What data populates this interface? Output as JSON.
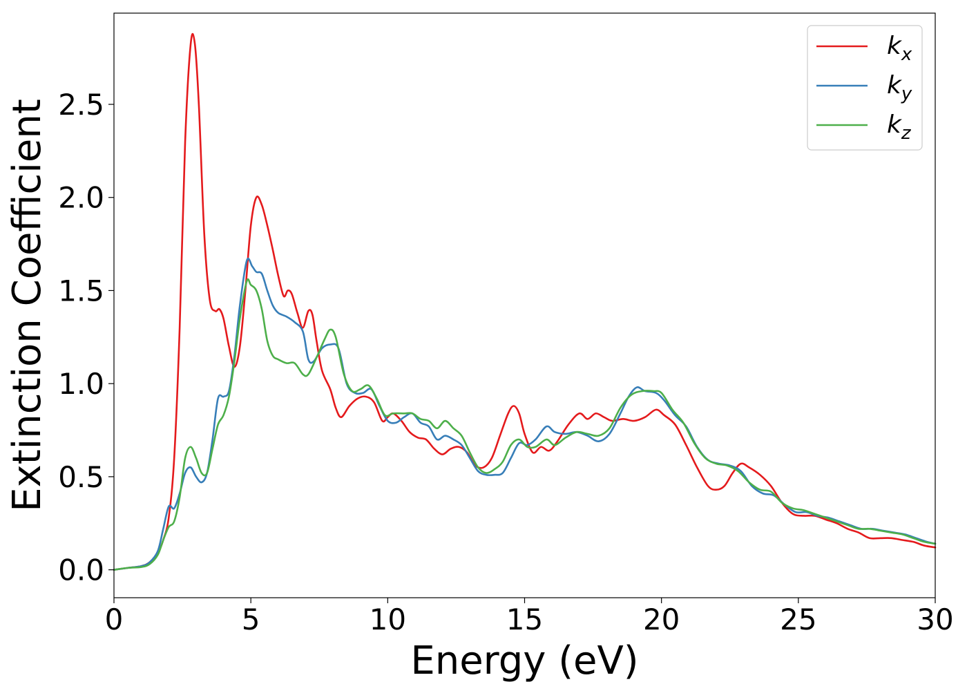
{
  "chart_data": {
    "type": "line",
    "xlabel": "Energy (eV)",
    "ylabel": "Extinction Coefficient",
    "xlim": [
      0,
      30
    ],
    "ylim": [
      -0.15,
      2.99
    ],
    "xticks": [
      0,
      5,
      10,
      15,
      20,
      25,
      30
    ],
    "xtick_labels": [
      "0",
      "5",
      "10",
      "15",
      "20",
      "25",
      "30"
    ],
    "yticks": [
      0.0,
      0.5,
      1.0,
      1.5,
      2.0,
      2.5
    ],
    "ytick_labels": [
      "0.0",
      "0.5",
      "1.0",
      "1.5",
      "2.0",
      "2.5"
    ],
    "grid": false,
    "legend_position": "top-right",
    "series": [
      {
        "name": "k",
        "subscript": "x",
        "color": "#e41a1c",
        "points": [
          [
            0,
            0
          ],
          [
            0.5,
            0.01
          ],
          [
            1,
            0.02
          ],
          [
            1.3,
            0.04
          ],
          [
            1.6,
            0.09
          ],
          [
            1.8,
            0.16
          ],
          [
            2,
            0.28
          ],
          [
            2.2,
            0.6
          ],
          [
            2.4,
            1.3
          ],
          [
            2.6,
            2.3
          ],
          [
            2.8,
            2.82
          ],
          [
            2.95,
            2.83
          ],
          [
            3.1,
            2.5
          ],
          [
            3.3,
            1.8
          ],
          [
            3.5,
            1.45
          ],
          [
            3.7,
            1.39
          ],
          [
            3.85,
            1.4
          ],
          [
            4,
            1.35
          ],
          [
            4.2,
            1.2
          ],
          [
            4.4,
            1.09
          ],
          [
            4.6,
            1.2
          ],
          [
            4.8,
            1.5
          ],
          [
            5,
            1.85
          ],
          [
            5.2,
            2.0
          ],
          [
            5.4,
            1.96
          ],
          [
            5.6,
            1.85
          ],
          [
            5.8,
            1.72
          ],
          [
            6,
            1.58
          ],
          [
            6.2,
            1.47
          ],
          [
            6.35,
            1.5
          ],
          [
            6.5,
            1.48
          ],
          [
            6.7,
            1.38
          ],
          [
            6.9,
            1.3
          ],
          [
            7.1,
            1.39
          ],
          [
            7.25,
            1.37
          ],
          [
            7.4,
            1.23
          ],
          [
            7.6,
            1.07
          ],
          [
            7.9,
            0.97
          ],
          [
            8.1,
            0.87
          ],
          [
            8.3,
            0.82
          ],
          [
            8.6,
            0.88
          ],
          [
            8.9,
            0.92
          ],
          [
            9.2,
            0.93
          ],
          [
            9.5,
            0.9
          ],
          [
            9.8,
            0.8
          ],
          [
            10,
            0.82
          ],
          [
            10.2,
            0.84
          ],
          [
            10.5,
            0.8
          ],
          [
            10.8,
            0.74
          ],
          [
            11.1,
            0.71
          ],
          [
            11.4,
            0.7
          ],
          [
            11.7,
            0.65
          ],
          [
            12,
            0.62
          ],
          [
            12.3,
            0.65
          ],
          [
            12.6,
            0.66
          ],
          [
            12.9,
            0.63
          ],
          [
            13.2,
            0.56
          ],
          [
            13.5,
            0.55
          ],
          [
            13.8,
            0.6
          ],
          [
            14.1,
            0.72
          ],
          [
            14.4,
            0.84
          ],
          [
            14.6,
            0.88
          ],
          [
            14.8,
            0.84
          ],
          [
            15,
            0.73
          ],
          [
            15.3,
            0.63
          ],
          [
            15.6,
            0.66
          ],
          [
            15.9,
            0.64
          ],
          [
            16.2,
            0.69
          ],
          [
            16.6,
            0.78
          ],
          [
            17,
            0.84
          ],
          [
            17.3,
            0.81
          ],
          [
            17.6,
            0.84
          ],
          [
            17.9,
            0.82
          ],
          [
            18.2,
            0.8
          ],
          [
            18.6,
            0.81
          ],
          [
            19,
            0.8
          ],
          [
            19.4,
            0.82
          ],
          [
            19.8,
            0.86
          ],
          [
            20.1,
            0.83
          ],
          [
            20.5,
            0.78
          ],
          [
            20.9,
            0.67
          ],
          [
            21.3,
            0.55
          ],
          [
            21.7,
            0.45
          ],
          [
            22,
            0.43
          ],
          [
            22.3,
            0.45
          ],
          [
            22.6,
            0.52
          ],
          [
            22.9,
            0.57
          ],
          [
            23.2,
            0.55
          ],
          [
            23.6,
            0.51
          ],
          [
            24,
            0.45
          ],
          [
            24.4,
            0.36
          ],
          [
            24.8,
            0.3
          ],
          [
            25.2,
            0.29
          ],
          [
            25.6,
            0.29
          ],
          [
            26,
            0.27
          ],
          [
            26.4,
            0.25
          ],
          [
            26.8,
            0.22
          ],
          [
            27.2,
            0.2
          ],
          [
            27.6,
            0.17
          ],
          [
            28,
            0.17
          ],
          [
            28.4,
            0.17
          ],
          [
            28.8,
            0.16
          ],
          [
            29.2,
            0.15
          ],
          [
            29.6,
            0.13
          ],
          [
            30,
            0.12
          ]
        ]
      },
      {
        "name": "k",
        "subscript": "y",
        "color": "#377eb8",
        "points": [
          [
            0,
            0
          ],
          [
            0.5,
            0.01
          ],
          [
            1,
            0.02
          ],
          [
            1.3,
            0.04
          ],
          [
            1.6,
            0.1
          ],
          [
            1.8,
            0.22
          ],
          [
            2,
            0.34
          ],
          [
            2.2,
            0.33
          ],
          [
            2.4,
            0.41
          ],
          [
            2.6,
            0.52
          ],
          [
            2.8,
            0.55
          ],
          [
            3,
            0.5
          ],
          [
            3.2,
            0.47
          ],
          [
            3.4,
            0.52
          ],
          [
            3.6,
            0.7
          ],
          [
            3.8,
            0.92
          ],
          [
            4,
            0.93
          ],
          [
            4.2,
            0.96
          ],
          [
            4.4,
            1.15
          ],
          [
            4.6,
            1.42
          ],
          [
            4.85,
            1.66
          ],
          [
            5.05,
            1.63
          ],
          [
            5.2,
            1.6
          ],
          [
            5.4,
            1.59
          ],
          [
            5.6,
            1.5
          ],
          [
            5.8,
            1.42
          ],
          [
            6,
            1.38
          ],
          [
            6.3,
            1.36
          ],
          [
            6.6,
            1.33
          ],
          [
            6.9,
            1.28
          ],
          [
            7.1,
            1.13
          ],
          [
            7.3,
            1.12
          ],
          [
            7.6,
            1.19
          ],
          [
            7.9,
            1.21
          ],
          [
            8.2,
            1.19
          ],
          [
            8.5,
            1.0
          ],
          [
            8.8,
            0.95
          ],
          [
            9.1,
            0.95
          ],
          [
            9.4,
            0.97
          ],
          [
            9.7,
            0.88
          ],
          [
            10,
            0.8
          ],
          [
            10.3,
            0.79
          ],
          [
            10.6,
            0.82
          ],
          [
            10.9,
            0.84
          ],
          [
            11.2,
            0.79
          ],
          [
            11.5,
            0.77
          ],
          [
            11.8,
            0.7
          ],
          [
            12.1,
            0.72
          ],
          [
            12.4,
            0.7
          ],
          [
            12.7,
            0.67
          ],
          [
            13,
            0.6
          ],
          [
            13.3,
            0.53
          ],
          [
            13.6,
            0.51
          ],
          [
            13.9,
            0.51
          ],
          [
            14.2,
            0.52
          ],
          [
            14.5,
            0.6
          ],
          [
            14.8,
            0.68
          ],
          [
            15.1,
            0.67
          ],
          [
            15.4,
            0.7
          ],
          [
            15.8,
            0.77
          ],
          [
            16.1,
            0.74
          ],
          [
            16.5,
            0.73
          ],
          [
            16.9,
            0.74
          ],
          [
            17.3,
            0.72
          ],
          [
            17.7,
            0.69
          ],
          [
            18.1,
            0.73
          ],
          [
            18.5,
            0.84
          ],
          [
            18.8,
            0.93
          ],
          [
            19.1,
            0.98
          ],
          [
            19.4,
            0.96
          ],
          [
            19.8,
            0.95
          ],
          [
            20.1,
            0.91
          ],
          [
            20.5,
            0.83
          ],
          [
            20.9,
            0.77
          ],
          [
            21.3,
            0.66
          ],
          [
            21.7,
            0.59
          ],
          [
            22.1,
            0.57
          ],
          [
            22.5,
            0.56
          ],
          [
            22.9,
            0.53
          ],
          [
            23.3,
            0.45
          ],
          [
            23.7,
            0.41
          ],
          [
            24.1,
            0.4
          ],
          [
            24.5,
            0.35
          ],
          [
            24.9,
            0.31
          ],
          [
            25.3,
            0.31
          ],
          [
            25.7,
            0.29
          ],
          [
            26.1,
            0.28
          ],
          [
            26.5,
            0.26
          ],
          [
            26.9,
            0.24
          ],
          [
            27.3,
            0.22
          ],
          [
            27.7,
            0.22
          ],
          [
            28.1,
            0.21
          ],
          [
            28.5,
            0.2
          ],
          [
            28.9,
            0.19
          ],
          [
            29.3,
            0.17
          ],
          [
            29.7,
            0.15
          ],
          [
            30,
            0.14
          ]
        ]
      },
      {
        "name": "k",
        "subscript": "z",
        "color": "#4daf4a",
        "points": [
          [
            0,
            0
          ],
          [
            0.5,
            0.01
          ],
          [
            1,
            0.015
          ],
          [
            1.3,
            0.03
          ],
          [
            1.6,
            0.08
          ],
          [
            1.8,
            0.16
          ],
          [
            2,
            0.23
          ],
          [
            2.2,
            0.26
          ],
          [
            2.4,
            0.39
          ],
          [
            2.6,
            0.6
          ],
          [
            2.8,
            0.66
          ],
          [
            3,
            0.6
          ],
          [
            3.2,
            0.52
          ],
          [
            3.4,
            0.52
          ],
          [
            3.6,
            0.65
          ],
          [
            3.8,
            0.78
          ],
          [
            4,
            0.83
          ],
          [
            4.2,
            0.93
          ],
          [
            4.4,
            1.12
          ],
          [
            4.6,
            1.35
          ],
          [
            4.85,
            1.55
          ],
          [
            5,
            1.53
          ],
          [
            5.2,
            1.5
          ],
          [
            5.4,
            1.4
          ],
          [
            5.6,
            1.23
          ],
          [
            5.8,
            1.15
          ],
          [
            6,
            1.13
          ],
          [
            6.3,
            1.11
          ],
          [
            6.6,
            1.11
          ],
          [
            6.9,
            1.05
          ],
          [
            7.1,
            1.05
          ],
          [
            7.4,
            1.14
          ],
          [
            7.7,
            1.24
          ],
          [
            7.9,
            1.29
          ],
          [
            8.1,
            1.25
          ],
          [
            8.4,
            1.05
          ],
          [
            8.7,
            0.96
          ],
          [
            9,
            0.97
          ],
          [
            9.3,
            0.99
          ],
          [
            9.6,
            0.92
          ],
          [
            9.9,
            0.83
          ],
          [
            10.2,
            0.84
          ],
          [
            10.6,
            0.84
          ],
          [
            10.9,
            0.84
          ],
          [
            11.2,
            0.81
          ],
          [
            11.5,
            0.8
          ],
          [
            11.8,
            0.76
          ],
          [
            12.1,
            0.8
          ],
          [
            12.4,
            0.76
          ],
          [
            12.7,
            0.72
          ],
          [
            13,
            0.63
          ],
          [
            13.3,
            0.55
          ],
          [
            13.6,
            0.52
          ],
          [
            13.9,
            0.54
          ],
          [
            14.2,
            0.58
          ],
          [
            14.5,
            0.67
          ],
          [
            14.8,
            0.7
          ],
          [
            15.1,
            0.66
          ],
          [
            15.4,
            0.66
          ],
          [
            15.8,
            0.7
          ],
          [
            16.1,
            0.67
          ],
          [
            16.5,
            0.71
          ],
          [
            16.9,
            0.74
          ],
          [
            17.3,
            0.73
          ],
          [
            17.7,
            0.72
          ],
          [
            18.1,
            0.76
          ],
          [
            18.5,
            0.87
          ],
          [
            18.9,
            0.94
          ],
          [
            19.3,
            0.96
          ],
          [
            19.7,
            0.96
          ],
          [
            20,
            0.95
          ],
          [
            20.4,
            0.86
          ],
          [
            20.8,
            0.79
          ],
          [
            21.2,
            0.68
          ],
          [
            21.6,
            0.6
          ],
          [
            22,
            0.57
          ],
          [
            22.4,
            0.56
          ],
          [
            22.8,
            0.53
          ],
          [
            23.2,
            0.47
          ],
          [
            23.6,
            0.43
          ],
          [
            24,
            0.42
          ],
          [
            24.4,
            0.36
          ],
          [
            24.8,
            0.33
          ],
          [
            25.2,
            0.32
          ],
          [
            25.6,
            0.3
          ],
          [
            26,
            0.28
          ],
          [
            26.4,
            0.26
          ],
          [
            26.8,
            0.24
          ],
          [
            27.2,
            0.22
          ],
          [
            27.6,
            0.22
          ],
          [
            28,
            0.21
          ],
          [
            28.4,
            0.2
          ],
          [
            28.8,
            0.19
          ],
          [
            29.2,
            0.17
          ],
          [
            29.6,
            0.15
          ],
          [
            30,
            0.14
          ]
        ]
      }
    ]
  }
}
